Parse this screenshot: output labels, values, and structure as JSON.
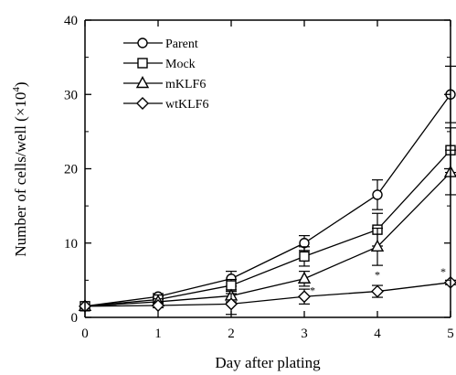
{
  "chart_data": {
    "type": "line",
    "title": "",
    "xlabel": "Day after plating",
    "ylabel_prefix": "Number of cells/well (×10",
    "ylabel_exp": "4",
    "ylabel_suffix": ")",
    "xlim": [
      0,
      5
    ],
    "ylim": [
      0,
      40
    ],
    "x_ticks": [
      "0",
      "1",
      "2",
      "3",
      "4",
      "5"
    ],
    "y_ticks": [
      "0",
      "10",
      "20",
      "30",
      "40"
    ],
    "grid": false,
    "legend_position": "top-left",
    "x": [
      0,
      1,
      2,
      3,
      4,
      5
    ],
    "series": [
      {
        "name": "Parent",
        "marker": "circle",
        "values": [
          1.5,
          2.8,
          5.2,
          10.0,
          16.5,
          30.0
        ],
        "errors": [
          0,
          0.4,
          1.0,
          1.0,
          2.0,
          3.8
        ]
      },
      {
        "name": "Mock",
        "marker": "square",
        "values": [
          1.5,
          2.4,
          4.3,
          8.2,
          11.8,
          22.5
        ],
        "errors": [
          0,
          0.4,
          0.8,
          1.3,
          2.2,
          3.0
        ]
      },
      {
        "name": "mKLF6",
        "marker": "triangle",
        "values": [
          1.5,
          2.1,
          2.9,
          5.2,
          9.5,
          19.5
        ],
        "errors": [
          0,
          0.4,
          0.8,
          1.0,
          2.5,
          3.0
        ]
      },
      {
        "name": "wtKLF6",
        "marker": "diamond",
        "values": [
          1.5,
          1.6,
          1.8,
          2.8,
          3.5,
          4.7
        ],
        "errors": [
          0,
          0.3,
          1.4,
          1.0,
          0.8,
          0.3
        ]
      }
    ],
    "annotations": [
      {
        "text": "*",
        "x": 3,
        "series": "wtKLF6"
      },
      {
        "text": "*",
        "x": 4,
        "series": "wtKLF6"
      },
      {
        "text": "*",
        "x": 5,
        "series": "wtKLF6"
      }
    ]
  }
}
